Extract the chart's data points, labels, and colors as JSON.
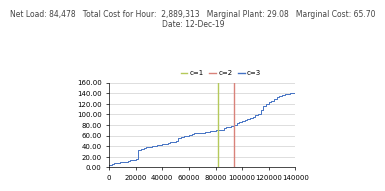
{
  "title_line1": "Net Load: 84,478   Total Cost for Hour:  2,889,313   Marginal Plant: 29.08   Marginal Cost: 65.70",
  "title_line2": "Date: 12-Dec-19",
  "legend_labels": [
    "c=1",
    "c=2",
    "c=3"
  ],
  "legend_colors": [
    "#b5c95a",
    "#d9827a",
    "#4472c4"
  ],
  "ylim": [
    0,
    160
  ],
  "xlim": [
    0,
    140000
  ],
  "yticks": [
    0,
    20,
    40,
    60,
    80,
    100,
    120,
    140,
    160
  ],
  "xticks": [
    0,
    20000,
    40000,
    60000,
    80000,
    100000,
    120000,
    140000
  ],
  "xtick_labels": [
    "0",
    "20000",
    "40000",
    "60000",
    "80000",
    "100000",
    "120000",
    "140000"
  ],
  "ytick_labels": [
    "0.00",
    "20.00",
    "40.00",
    "60.00",
    "80.00",
    "100.00",
    "120.00",
    "140.00",
    "160.00"
  ],
  "vline1_x": 82000,
  "vline1_color": "#b5c95a",
  "vline2_x": 94000,
  "vline2_color": "#d9827a",
  "curve_color": "#4472c4",
  "background_color": "#ffffff",
  "grid_color": "#d0d0d0",
  "title_fontsize": 5.5,
  "legend_fontsize": 5,
  "tick_fontsize": 5,
  "curve_x": [
    0,
    2000,
    4000,
    6000,
    8000,
    10000,
    12000,
    14000,
    16000,
    18000,
    20000,
    22000,
    24000,
    26000,
    28000,
    30000,
    32000,
    34000,
    36000,
    38000,
    40000,
    42000,
    44000,
    46000,
    48000,
    50000,
    52000,
    54000,
    56000,
    58000,
    60000,
    62000,
    64000,
    66000,
    68000,
    70000,
    72000,
    74000,
    76000,
    78000,
    80000,
    82000,
    84000,
    86000,
    88000,
    90000,
    92000,
    94000,
    96000,
    98000,
    100000,
    102000,
    104000,
    106000,
    108000,
    110000,
    112000,
    114000,
    116000,
    118000,
    120000,
    122000,
    124000,
    126000,
    128000,
    130000,
    132000,
    134000,
    136000,
    138000,
    140000
  ],
  "curve_y": [
    5,
    7,
    8,
    9,
    10,
    10,
    11,
    12,
    14,
    14,
    15,
    33,
    35,
    37,
    38,
    39,
    40,
    41,
    42,
    43,
    44,
    45,
    46,
    47,
    48,
    49,
    55,
    57,
    59,
    60,
    62,
    63,
    64,
    65,
    65,
    65,
    66,
    67,
    68,
    69,
    70,
    70,
    71,
    75,
    76,
    77,
    78,
    80,
    83,
    86,
    88,
    90,
    92,
    94,
    96,
    98,
    100,
    108,
    115,
    120,
    123,
    126,
    129,
    132,
    135,
    137,
    138,
    139,
    140,
    141,
    143
  ]
}
